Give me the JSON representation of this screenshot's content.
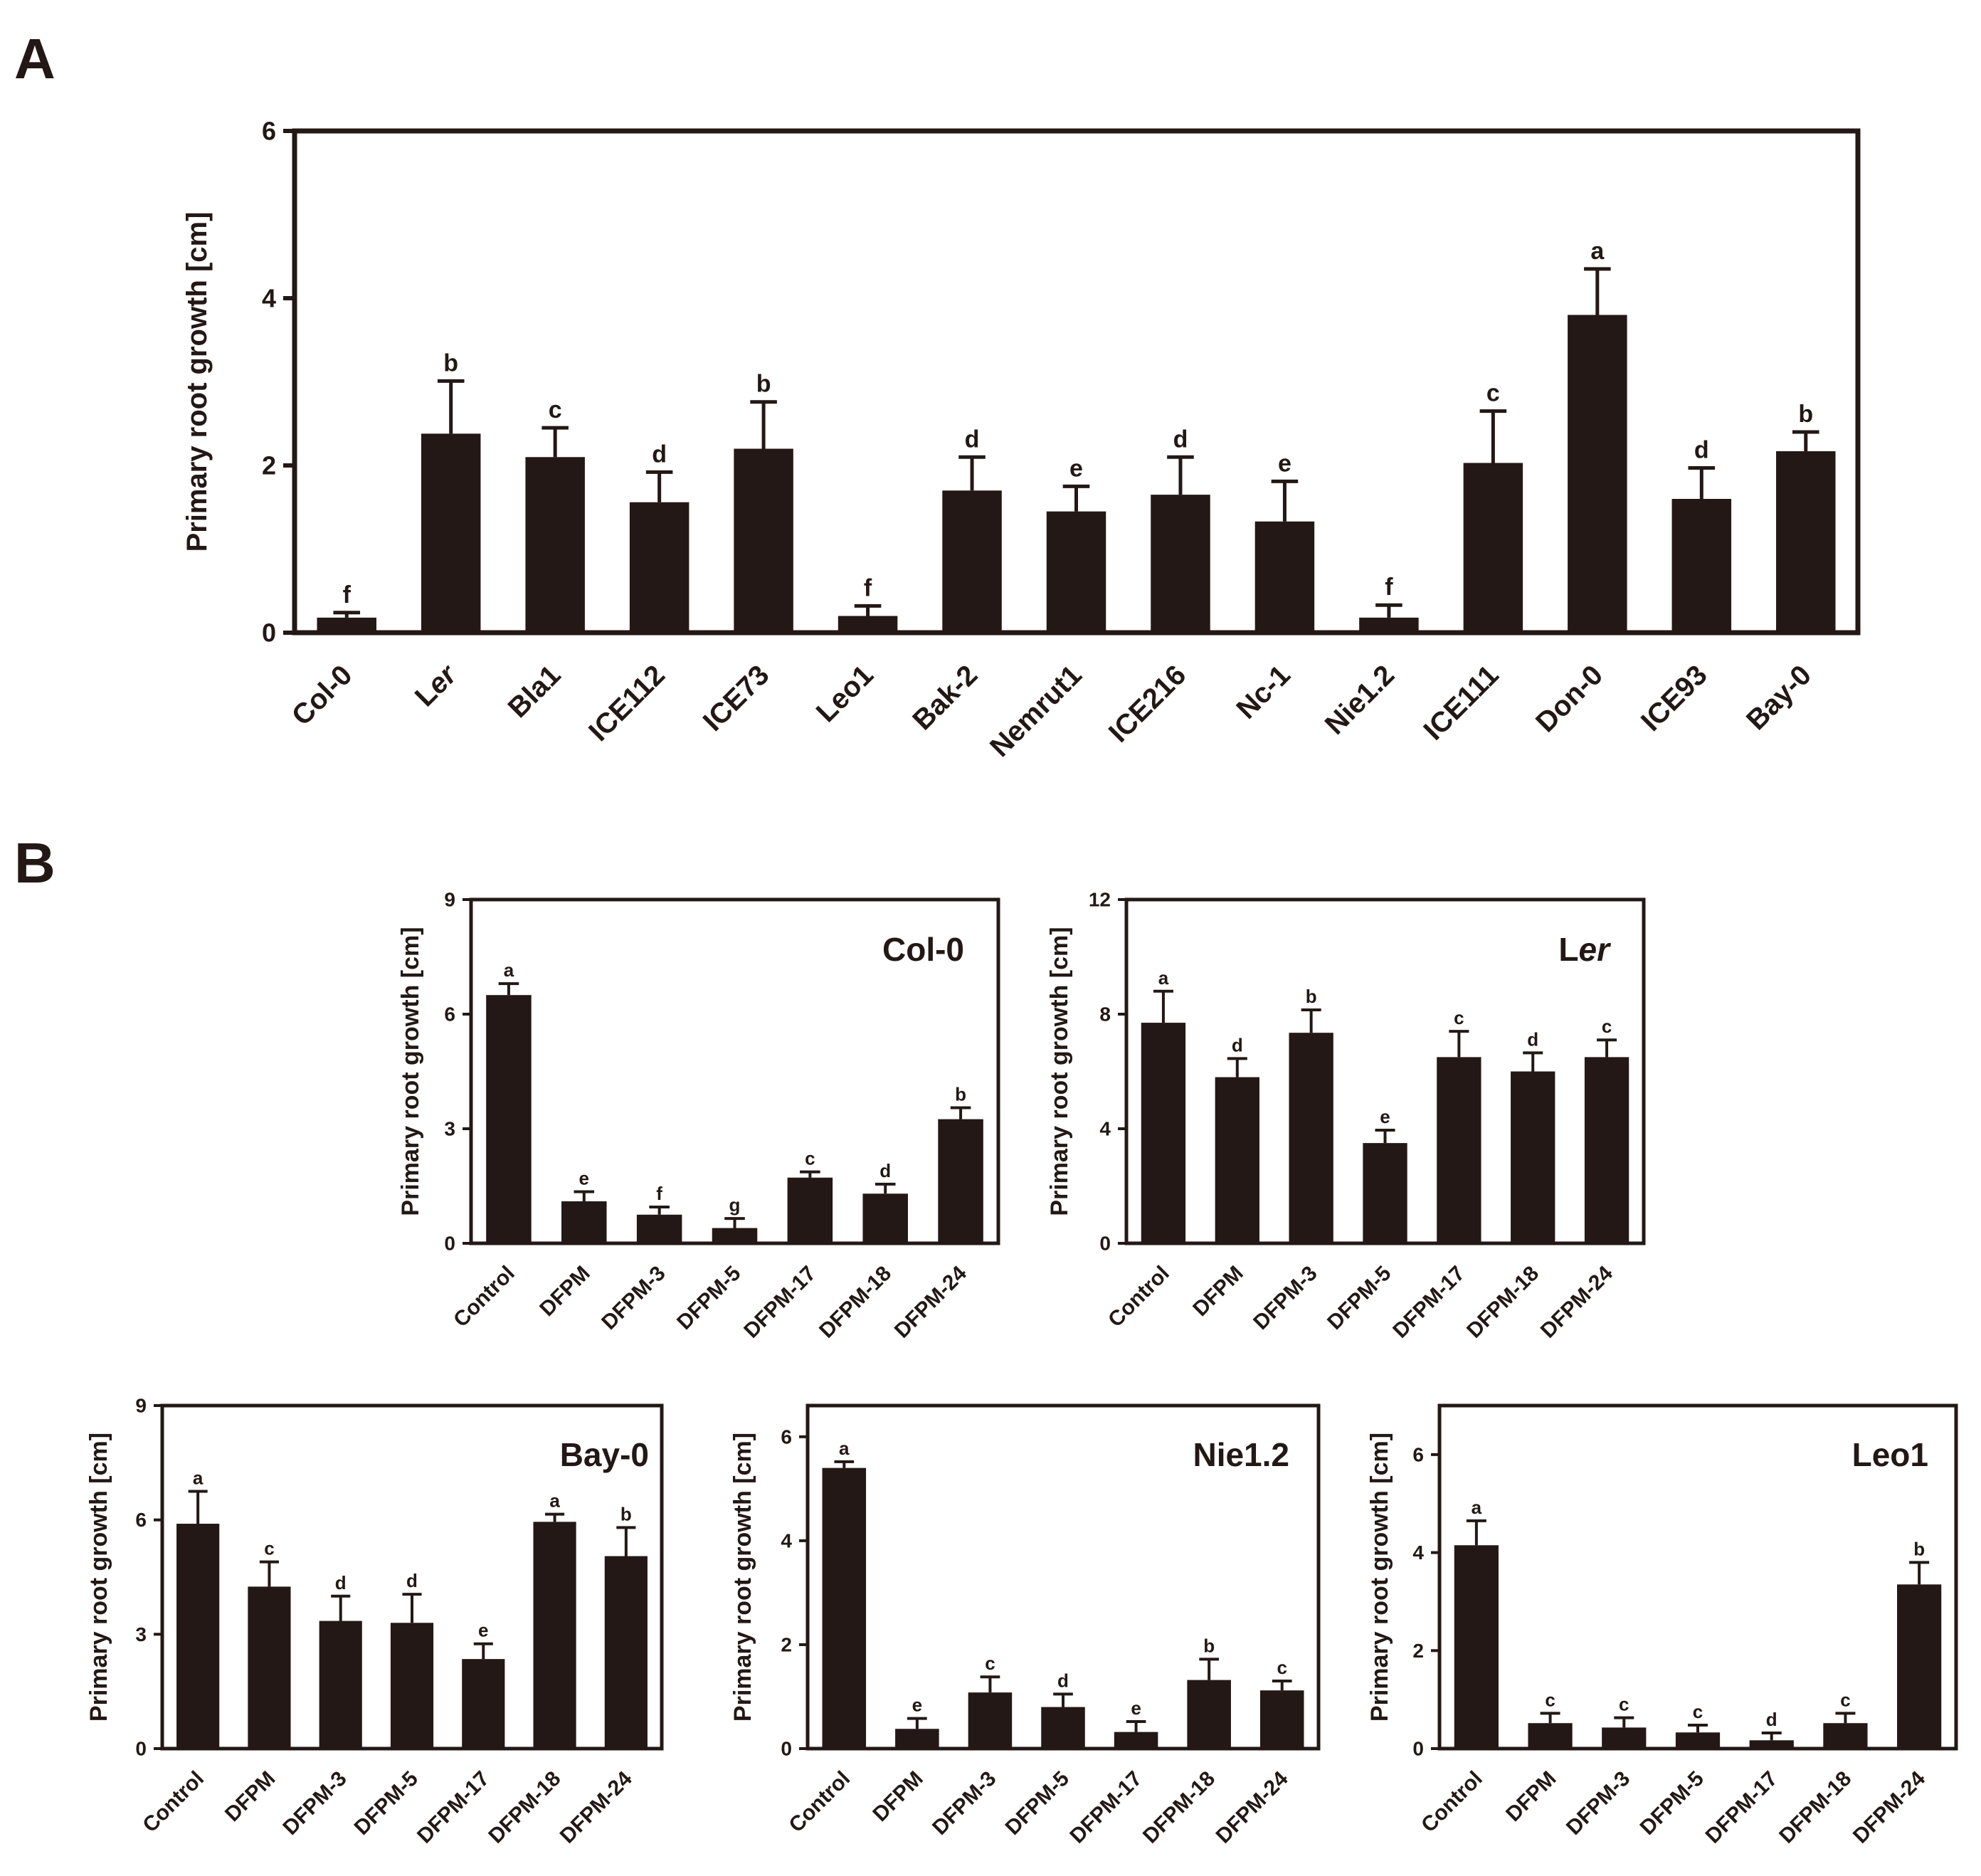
{
  "colors": {
    "bar": "#231815",
    "axis": "#231815",
    "background": "#ffffff"
  },
  "chart_data": [
    {
      "id": "A",
      "panel_label": "A",
      "type": "bar",
      "title": "",
      "xlabel": "",
      "ylabel": "Primary root growth [cm]",
      "ylim": [
        0,
        6
      ],
      "yticks": [
        0,
        2,
        4,
        6
      ],
      "categories": [
        "Col-0",
        "Ler",
        "Bla1",
        "ICE112",
        "ICE73",
        "Leo1",
        "Bak-2",
        "Nemrut1",
        "ICE216",
        "Nc-1",
        "Nie1.2",
        "ICE111",
        "Don-0",
        "ICE93",
        "Bay-0"
      ],
      "category_italic_suffix": {
        "Ler": "er"
      },
      "values": [
        0.18,
        2.38,
        2.1,
        1.56,
        2.2,
        0.2,
        1.7,
        1.45,
        1.65,
        1.33,
        0.18,
        2.03,
        3.8,
        1.6,
        2.17
      ],
      "errors": [
        0.06,
        0.63,
        0.35,
        0.36,
        0.56,
        0.12,
        0.4,
        0.3,
        0.45,
        0.48,
        0.15,
        0.62,
        0.55,
        0.37,
        0.23
      ],
      "significance": [
        "f",
        "b",
        "c",
        "d",
        "b",
        "f",
        "d",
        "e",
        "d",
        "e",
        "f",
        "c",
        "a",
        "d",
        "b"
      ]
    },
    {
      "id": "B1",
      "panel_label": "B",
      "type": "bar",
      "title": "Col-0",
      "xlabel": "",
      "ylabel": "Primary root growth [cm]",
      "ylim": [
        0,
        9
      ],
      "yticks": [
        0,
        3,
        6,
        9
      ],
      "categories": [
        "Control",
        "DFPM",
        "DFPM-3",
        "DFPM-5",
        "DFPM-17",
        "DFPM-18",
        "DFPM-24"
      ],
      "values": [
        6.5,
        1.1,
        0.75,
        0.4,
        1.72,
        1.3,
        3.25
      ],
      "errors": [
        0.3,
        0.25,
        0.2,
        0.25,
        0.15,
        0.25,
        0.3
      ],
      "significance": [
        "a",
        "e",
        "f",
        "g",
        "c",
        "d",
        "b"
      ]
    },
    {
      "id": "B2",
      "type": "bar",
      "title": "Ler",
      "title_italic_suffix": "er",
      "xlabel": "",
      "ylabel": "Primary root growth [cm]",
      "ylim": [
        0,
        12
      ],
      "yticks": [
        0,
        4,
        8,
        12
      ],
      "categories": [
        "Control",
        "DFPM",
        "DFPM-3",
        "DFPM-5",
        "DFPM-17",
        "DFPM-18",
        "DFPM-24"
      ],
      "values": [
        7.7,
        5.8,
        7.35,
        3.5,
        6.5,
        6.0,
        6.5
      ],
      "errors": [
        1.1,
        0.65,
        0.8,
        0.45,
        0.9,
        0.65,
        0.6
      ],
      "significance": [
        "a",
        "d",
        "b",
        "e",
        "c",
        "d",
        "c"
      ]
    },
    {
      "id": "B3",
      "type": "bar",
      "title": "Bay-0",
      "xlabel": "",
      "ylabel": "Primary root growth [cm]",
      "ylim": [
        0,
        9
      ],
      "yticks": [
        0,
        3,
        6,
        9
      ],
      "categories": [
        "Control",
        "DFPM",
        "DFPM-3",
        "DFPM-5",
        "DFPM-17",
        "DFPM-18",
        "DFPM-24"
      ],
      "values": [
        5.9,
        4.25,
        3.35,
        3.3,
        2.35,
        5.95,
        5.05
      ],
      "errors": [
        0.85,
        0.65,
        0.65,
        0.75,
        0.4,
        0.2,
        0.75
      ],
      "significance": [
        "a",
        "c",
        "d",
        "d",
        "e",
        "a",
        "b"
      ]
    },
    {
      "id": "B4",
      "type": "bar",
      "title": "Nie1.2",
      "xlabel": "",
      "ylabel": "Primary root growth [cm]",
      "ylim": [
        0,
        6.6
      ],
      "yticks": [
        0,
        2,
        4,
        6
      ],
      "categories": [
        "Control",
        "DFPM",
        "DFPM-3",
        "DFPM-5",
        "DFPM-17",
        "DFPM-18",
        "DFPM-24"
      ],
      "values": [
        5.4,
        0.38,
        1.08,
        0.8,
        0.32,
        1.32,
        1.12
      ],
      "errors": [
        0.12,
        0.2,
        0.3,
        0.25,
        0.2,
        0.4,
        0.18
      ],
      "significance": [
        "a",
        "e",
        "c",
        "d",
        "e",
        "b",
        "c"
      ]
    },
    {
      "id": "B5",
      "type": "bar",
      "title": "Leo1",
      "xlabel": "",
      "ylabel": "Primary root growth [cm]",
      "ylim": [
        0,
        7
      ],
      "yticks": [
        0,
        2,
        4,
        6
      ],
      "categories": [
        "Control",
        "DFPM",
        "DFPM-3",
        "DFPM-5",
        "DFPM-17",
        "DFPM-18",
        "DFPM-24"
      ],
      "values": [
        4.15,
        0.52,
        0.43,
        0.33,
        0.17,
        0.52,
        3.35
      ],
      "errors": [
        0.5,
        0.2,
        0.2,
        0.15,
        0.15,
        0.2,
        0.45
      ],
      "significance": [
        "a",
        "c",
        "c",
        "c",
        "d",
        "c",
        "b"
      ]
    }
  ]
}
